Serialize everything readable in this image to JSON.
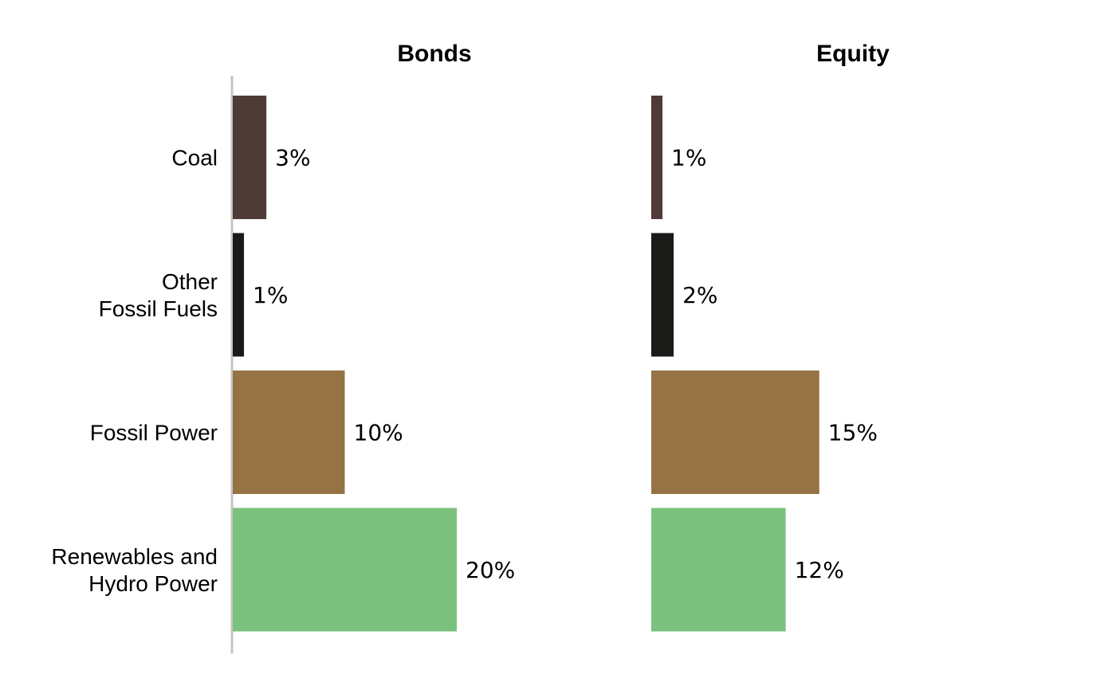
{
  "chart_data": {
    "type": "bar",
    "orientation": "horizontal",
    "categories": [
      "Coal",
      "Other\nFossil Fuels",
      "Fossil Power",
      "Renewables and\nHydro Power"
    ],
    "colors": [
      "#4e3b36",
      "#1a1a18",
      "#957345",
      "#7ac17d"
    ],
    "panels": [
      {
        "title": "Bonds",
        "values": [
          3,
          1,
          10,
          20
        ],
        "labels": [
          "3%",
          "1%",
          "10%",
          "20%"
        ]
      },
      {
        "title": "Equity",
        "values": [
          1,
          2,
          15,
          12
        ],
        "labels": [
          "1%",
          "2%",
          "15%",
          "12%"
        ]
      }
    ],
    "xlim": [
      0,
      20
    ],
    "grid": false,
    "legend": "none"
  }
}
